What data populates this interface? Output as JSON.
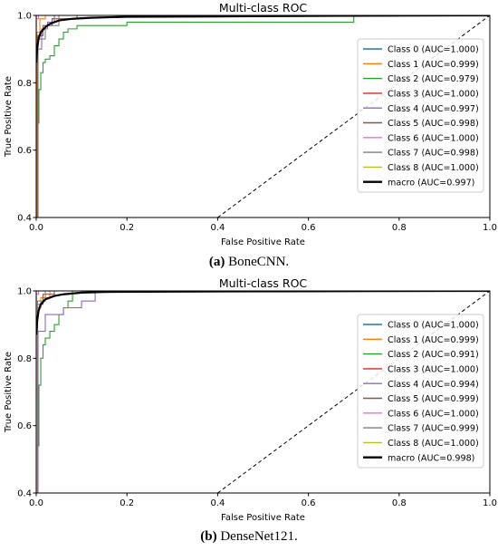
{
  "chart_data": [
    {
      "type": "line",
      "title": "Multi-class ROC",
      "xlabel": "False Positive Rate",
      "ylabel": "True Positive Rate",
      "xlim": [
        0,
        1
      ],
      "ylim": [
        0.4,
        1.0
      ],
      "xticks": [
        "0.0",
        "0.2",
        "0.4",
        "0.6",
        "0.8",
        "1.0"
      ],
      "yticks": [
        "0.4",
        "0.6",
        "0.8",
        "1.0"
      ],
      "legend_position": "right",
      "caption_label": "(a)",
      "caption_text": " BoneCNN.",
      "series": [
        {
          "name": "Class 0 (AUC=1.000)",
          "color": "#1f77b4",
          "x": [
            0,
            0,
            1
          ],
          "y": [
            0.4,
            1.0,
            1.0
          ]
        },
        {
          "name": "Class 1 (AUC=0.999)",
          "color": "#ff7f0e",
          "x": [
            0,
            0.002,
            0.002,
            0.008,
            0.008,
            0.02,
            0.02,
            1
          ],
          "y": [
            0.4,
            0.4,
            0.95,
            0.95,
            0.99,
            0.99,
            1.0,
            1.0
          ]
        },
        {
          "name": "Class 2 (AUC=0.979)",
          "color": "#2ca02c",
          "x": [
            0,
            0.003,
            0.003,
            0.006,
            0.006,
            0.01,
            0.01,
            0.015,
            0.015,
            0.02,
            0.02,
            0.03,
            0.03,
            0.04,
            0.04,
            0.05,
            0.05,
            0.06,
            0.06,
            0.07,
            0.07,
            0.09,
            0.09,
            0.2,
            0.2,
            0.7,
            0.7,
            1
          ],
          "y": [
            0.4,
            0.4,
            0.68,
            0.68,
            0.78,
            0.78,
            0.83,
            0.83,
            0.86,
            0.86,
            0.87,
            0.87,
            0.88,
            0.88,
            0.91,
            0.91,
            0.93,
            0.93,
            0.95,
            0.95,
            0.96,
            0.96,
            0.97,
            0.97,
            0.98,
            0.98,
            1.0,
            1.0
          ]
        },
        {
          "name": "Class 3 (AUC=1.000)",
          "color": "#d62728",
          "x": [
            0,
            0,
            1
          ],
          "y": [
            0.4,
            1.0,
            1.0
          ]
        },
        {
          "name": "Class 4 (AUC=0.997)",
          "color": "#9467bd",
          "x": [
            0,
            0.004,
            0.004,
            0.012,
            0.012,
            0.025,
            0.025,
            0.04,
            0.04,
            1
          ],
          "y": [
            0.4,
            0.4,
            0.9,
            0.9,
            0.96,
            0.96,
            0.98,
            0.98,
            1.0,
            1.0
          ]
        },
        {
          "name": "Class 5 (AUC=0.998)",
          "color": "#8c564b",
          "x": [
            0,
            0.003,
            0.003,
            0.015,
            0.015,
            0.035,
            0.035,
            0.09,
            0.09,
            1
          ],
          "y": [
            0.4,
            0.4,
            0.94,
            0.94,
            0.97,
            0.97,
            0.99,
            0.99,
            1.0,
            1.0
          ]
        },
        {
          "name": "Class 6 (AUC=1.000)",
          "color": "#e377c2",
          "x": [
            0,
            0,
            0.005,
            0.005,
            1
          ],
          "y": [
            0.4,
            0.99,
            0.99,
            1.0,
            1.0
          ]
        },
        {
          "name": "Class 7 (AUC=0.998)",
          "color": "#7f7f7f",
          "x": [
            0,
            0.004,
            0.004,
            0.02,
            0.02,
            0.05,
            0.05,
            1
          ],
          "y": [
            0.4,
            0.4,
            0.93,
            0.93,
            0.97,
            0.97,
            1.0,
            1.0
          ]
        },
        {
          "name": "Class 8 (AUC=1.000)",
          "color": "#bcbd22",
          "x": [
            0,
            0,
            1
          ],
          "y": [
            0.4,
            1.0,
            1.0
          ]
        },
        {
          "name": "macro (AUC=0.997)",
          "color": "#000000",
          "x": [
            0,
            0.002,
            0.005,
            0.01,
            0.02,
            0.03,
            0.05,
            0.08,
            0.12,
            0.2,
            0.4,
            0.7,
            1.0
          ],
          "y": [
            0.86,
            0.9,
            0.93,
            0.95,
            0.965,
            0.975,
            0.985,
            0.99,
            0.993,
            0.996,
            0.997,
            0.999,
            1.0
          ]
        }
      ],
      "diagonal": {
        "x": [
          0.4,
          1.0
        ],
        "y": [
          0.4,
          1.0
        ],
        "style": "dashed"
      }
    },
    {
      "type": "line",
      "title": "Multi-class ROC",
      "xlabel": "False Positive Rate",
      "ylabel": "True Positive Rate",
      "xlim": [
        0,
        1
      ],
      "ylim": [
        0.4,
        1.0
      ],
      "xticks": [
        "0.0",
        "0.2",
        "0.4",
        "0.6",
        "0.8",
        "1.0"
      ],
      "yticks": [
        "0.4",
        "0.6",
        "0.8",
        "1.0"
      ],
      "legend_position": "right",
      "caption_label": "(b)",
      "caption_text": " DenseNet121.",
      "series": [
        {
          "name": "Class 0 (AUC=1.000)",
          "color": "#1f77b4",
          "x": [
            0,
            0,
            1
          ],
          "y": [
            0.4,
            1.0,
            1.0
          ]
        },
        {
          "name": "Class 1 (AUC=0.999)",
          "color": "#ff7f0e",
          "x": [
            0,
            0.003,
            0.003,
            0.01,
            0.01,
            0.03,
            0.03,
            1
          ],
          "y": [
            0.4,
            0.4,
            0.95,
            0.95,
            0.98,
            0.98,
            1.0,
            1.0
          ]
        },
        {
          "name": "Class 2 (AUC=0.991)",
          "color": "#2ca02c",
          "x": [
            0,
            0.003,
            0.003,
            0.006,
            0.006,
            0.01,
            0.01,
            0.015,
            0.015,
            0.02,
            0.02,
            0.03,
            0.03,
            0.04,
            0.04,
            0.05,
            0.05,
            0.06,
            0.06,
            0.07,
            0.07,
            0.08,
            0.08,
            1
          ],
          "y": [
            0.4,
            0.4,
            0.54,
            0.54,
            0.72,
            0.72,
            0.8,
            0.8,
            0.84,
            0.84,
            0.86,
            0.86,
            0.88,
            0.88,
            0.9,
            0.9,
            0.93,
            0.93,
            0.95,
            0.95,
            0.97,
            0.97,
            1.0,
            1.0
          ]
        },
        {
          "name": "Class 3 (AUC=1.000)",
          "color": "#d62728",
          "x": [
            0,
            0,
            1
          ],
          "y": [
            0.4,
            1.0,
            1.0
          ]
        },
        {
          "name": "Class 4 (AUC=0.994)",
          "color": "#9467bd",
          "x": [
            0,
            0.004,
            0.004,
            0.02,
            0.02,
            0.06,
            0.06,
            0.1,
            0.1,
            0.13,
            0.13,
            1
          ],
          "y": [
            0.4,
            0.4,
            0.88,
            0.88,
            0.93,
            0.93,
            0.95,
            0.95,
            0.97,
            0.97,
            1.0,
            1.0
          ]
        },
        {
          "name": "Class 5 (AUC=0.999)",
          "color": "#8c564b",
          "x": [
            0,
            0.003,
            0.003,
            0.015,
            0.015,
            0.04,
            0.04,
            1
          ],
          "y": [
            0.4,
            0.4,
            0.96,
            0.96,
            0.99,
            0.99,
            1.0,
            1.0
          ]
        },
        {
          "name": "Class 6 (AUC=1.000)",
          "color": "#e377c2",
          "x": [
            0,
            0,
            0.005,
            0.005,
            1
          ],
          "y": [
            0.4,
            0.99,
            0.99,
            1.0,
            1.0
          ]
        },
        {
          "name": "Class 7 (AUC=0.999)",
          "color": "#7f7f7f",
          "x": [
            0,
            0.003,
            0.003,
            0.02,
            0.02,
            1
          ],
          "y": [
            0.4,
            0.4,
            0.97,
            0.97,
            1.0,
            1.0
          ]
        },
        {
          "name": "Class 8 (AUC=1.000)",
          "color": "#bcbd22",
          "x": [
            0,
            0,
            1
          ],
          "y": [
            0.4,
            1.0,
            1.0
          ]
        },
        {
          "name": "macro (AUC=0.998)",
          "color": "#000000",
          "x": [
            0,
            0.002,
            0.005,
            0.01,
            0.02,
            0.04,
            0.06,
            0.1,
            0.15,
            0.3,
            0.6,
            1.0
          ],
          "y": [
            0.87,
            0.91,
            0.94,
            0.96,
            0.975,
            0.985,
            0.99,
            0.995,
            0.997,
            0.998,
            0.999,
            1.0
          ]
        }
      ],
      "diagonal": {
        "x": [
          0.4,
          1.0
        ],
        "y": [
          0.4,
          1.0
        ],
        "style": "dashed"
      }
    }
  ]
}
